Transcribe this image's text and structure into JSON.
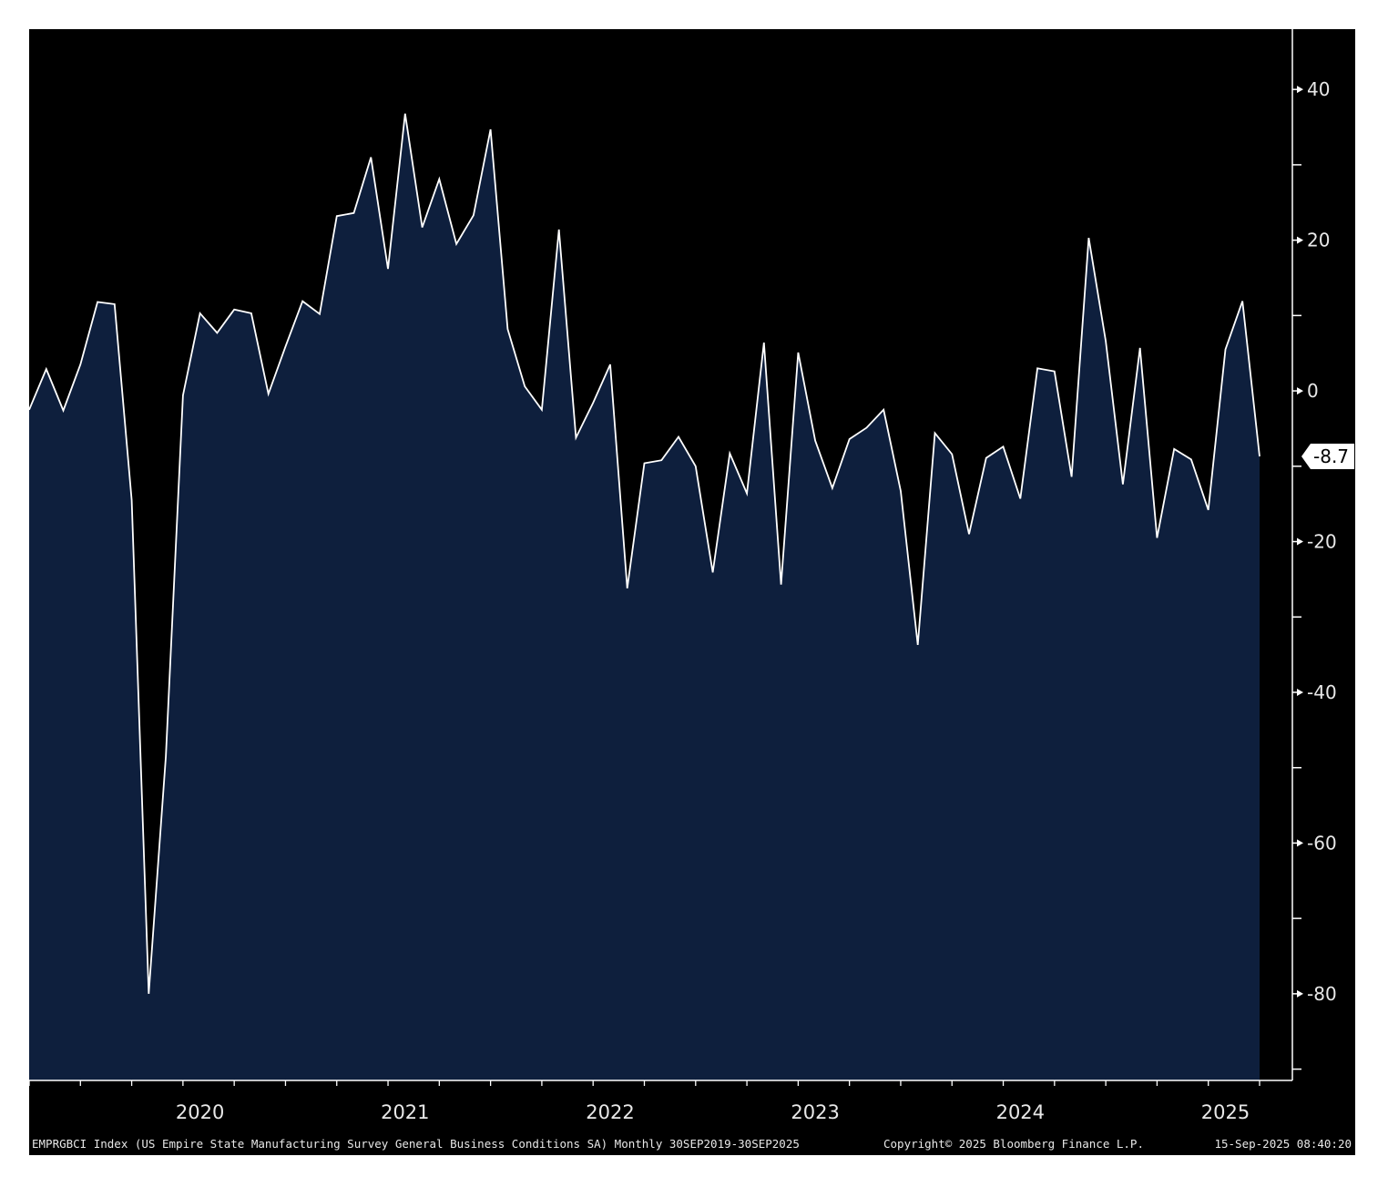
{
  "chart_data": {
    "type": "area",
    "title": "",
    "xlabel": "",
    "ylabel": "",
    "ylim": [
      -91.5,
      48
    ],
    "y_ticks": [
      -80,
      -60,
      -40,
      -20,
      0,
      20,
      40
    ],
    "year_labels": [
      "2020",
      "2021",
      "2022",
      "2023",
      "2024",
      "2025"
    ],
    "last_value_label": "-8.7",
    "grid": false,
    "colors": {
      "background": "#000000",
      "area_fill": "#0e1f3d",
      "line": "#ffffff",
      "badge": "#ffffff"
    },
    "series": [
      {
        "x": [
          "2019-09",
          "2019-10",
          "2019-11",
          "2019-12",
          "2020-01",
          "2020-02",
          "2020-03",
          "2020-04",
          "2020-05",
          "2020-06",
          "2020-07",
          "2020-08",
          "2020-09",
          "2020-10",
          "2020-11",
          "2020-12",
          "2021-01",
          "2021-02",
          "2021-03",
          "2021-04",
          "2021-05",
          "2021-06",
          "2021-07",
          "2021-08",
          "2021-09",
          "2021-10",
          "2021-11",
          "2021-12",
          "2022-01",
          "2022-02",
          "2022-03",
          "2022-04",
          "2022-05",
          "2022-06",
          "2022-07",
          "2022-08",
          "2022-09",
          "2022-10",
          "2022-11",
          "2022-12",
          "2023-01",
          "2023-02",
          "2023-03",
          "2023-04",
          "2023-05",
          "2023-06",
          "2023-07",
          "2023-08",
          "2023-09",
          "2023-10",
          "2023-11",
          "2023-12",
          "2024-01",
          "2024-02",
          "2024-03",
          "2024-04",
          "2024-05",
          "2024-06",
          "2024-07",
          "2024-08",
          "2024-09",
          "2024-10",
          "2024-11",
          "2024-12",
          "2025-01",
          "2025-02",
          "2025-03",
          "2025-04",
          "2025-05",
          "2025-06",
          "2025-07",
          "2025-08",
          "2025-09"
        ],
        "values": [
          -2.5,
          2.9,
          -2.6,
          3.5,
          11.8,
          11.5,
          -14.5,
          -80.0,
          -48.5,
          -0.6,
          10.3,
          7.7,
          10.8,
          10.3,
          -0.4,
          5.9,
          11.9,
          10.2,
          23.2,
          23.6,
          31.0,
          16.2,
          36.8,
          21.7,
          28.1,
          19.5,
          23.3,
          34.7,
          8.2,
          0.6,
          -2.5,
          21.4,
          -6.2,
          -1.6,
          3.5,
          -26.2,
          -9.6,
          -9.2,
          -6.1,
          -10.0,
          -24.1,
          -8.3,
          -13.6,
          6.4,
          -25.7,
          5.1,
          -6.6,
          -12.9,
          -6.4,
          -4.9,
          -2.5,
          -13.3,
          -33.7,
          -5.6,
          -8.4,
          -19.0,
          -8.9,
          -7.4,
          -14.3,
          3.0,
          2.6,
          -11.4,
          20.3,
          6.6,
          -12.4,
          5.7,
          -19.5,
          -7.7,
          -9.1,
          -15.8,
          5.5,
          11.9,
          -8.7
        ]
      }
    ]
  },
  "footer": {
    "description": "EMPRGBCI Index (US Empire State Manufacturing Survey General Business Conditions SA) Monthly 30SEP2019-30SEP2025",
    "copyright": "Copyright© 2025 Bloomberg Finance L.P.",
    "timestamp": "15-Sep-2025 08:40:20"
  }
}
